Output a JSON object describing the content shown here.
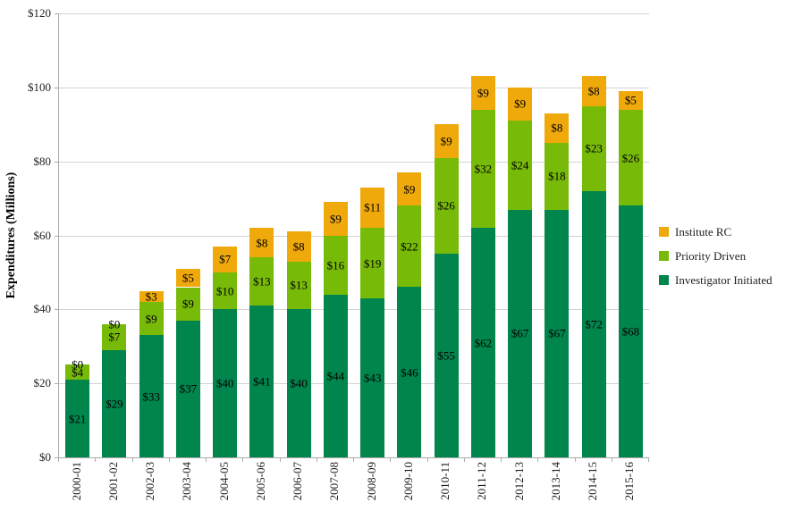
{
  "y_axis": {
    "title": "Expenditures (Millions)",
    "ticks": [
      "$0",
      "$20",
      "$40",
      "$60",
      "$80",
      "$100",
      "$120"
    ],
    "min": 0,
    "max": 120,
    "step": 20
  },
  "legend": {
    "items": [
      "Institute RC",
      "Priority Driven",
      "Investigator Initiated"
    ]
  },
  "chart_data": {
    "type": "bar",
    "stacked": true,
    "title": "",
    "ylabel": "Expenditures (Millions)",
    "xlabel": "",
    "ylim": [
      0,
      120
    ],
    "y_step": 20,
    "grid": true,
    "legend_position": "right",
    "value_label_format": "$N",
    "categories": [
      "2000-01",
      "2001-02",
      "2002-03",
      "2003-04",
      "2004-05",
      "2005-06",
      "2006-07",
      "2007-08",
      "2008-09",
      "2009-10",
      "2010-11",
      "2011-12",
      "2012-13",
      "2013-14",
      "2014-15",
      "2015-16"
    ],
    "series": [
      {
        "name": "Investigator Initiated",
        "color": "#00854C",
        "values": [
          21,
          29,
          33,
          37,
          40,
          41,
          40,
          44,
          43,
          46,
          55,
          62,
          67,
          67,
          72,
          68
        ]
      },
      {
        "name": "Priority Driven",
        "color": "#78BA08",
        "values": [
          4,
          7,
          9,
          9,
          10,
          13,
          13,
          16,
          19,
          22,
          26,
          32,
          24,
          18,
          23,
          26
        ]
      },
      {
        "name": "Institute RC",
        "color": "#EFA90B",
        "values": [
          0,
          0,
          3,
          5,
          7,
          8,
          8,
          9,
          11,
          9,
          9,
          9,
          9,
          8,
          8,
          5
        ]
      }
    ]
  }
}
